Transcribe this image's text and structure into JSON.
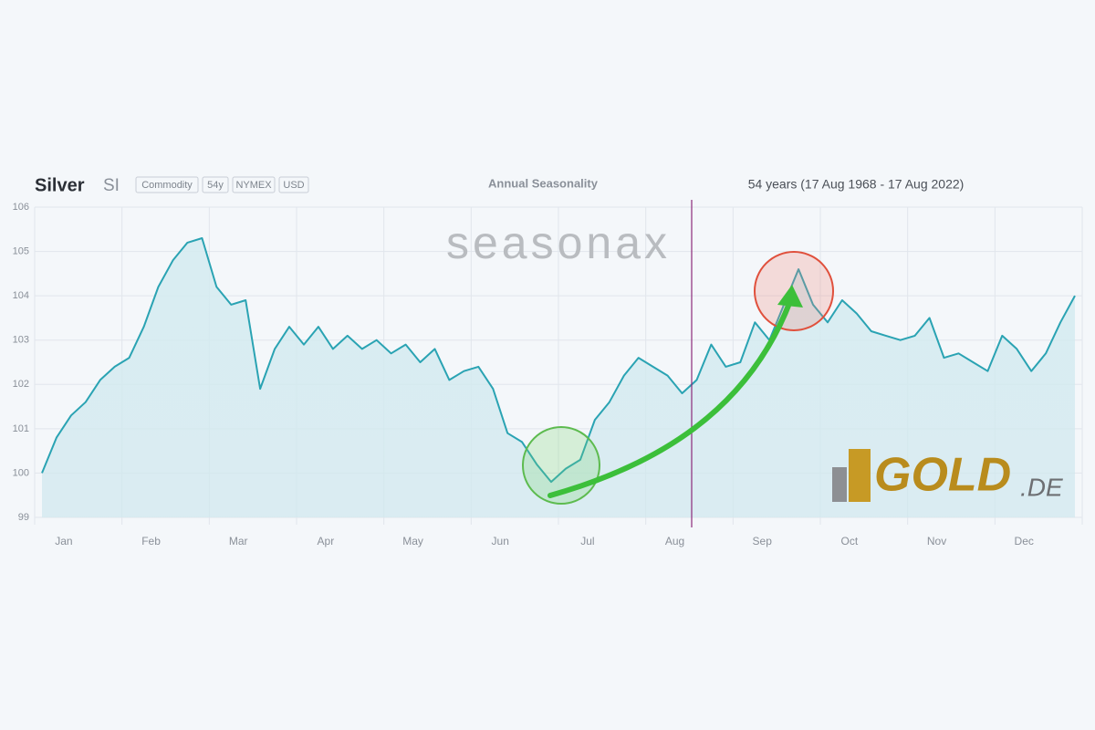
{
  "chart_data": {
    "type": "line",
    "title": "Silver",
    "symbol": "SI",
    "tags": [
      "Commodity",
      "54y",
      "NYMEX",
      "USD"
    ],
    "subtitle": "Annual Seasonality",
    "period": "54 years (17 Aug 1968 - 17 Aug 2022)",
    "watermark": "seasonax",
    "logo": [
      "GOLD",
      ".DE"
    ],
    "categories": [
      null,
      null,
      "Jan",
      null,
      null,
      null,
      null,
      null,
      "Feb",
      null,
      null,
      null,
      null,
      null,
      "Mar",
      null,
      null,
      null,
      null,
      null,
      "Apr",
      null,
      null,
      null,
      null,
      null,
      "May",
      null,
      null,
      null,
      null,
      null,
      "Jun",
      null,
      null,
      null,
      null,
      null,
      "Jul",
      null,
      null,
      null,
      null,
      null,
      "Aug",
      null,
      null,
      null,
      null,
      null,
      "Sep",
      null,
      null,
      null,
      null,
      null,
      "Oct",
      null,
      null,
      null,
      null,
      null,
      "Nov",
      null,
      null,
      null,
      null,
      null,
      "Dec",
      null,
      null,
      null
    ],
    "series": [
      {
        "name": "Silver",
        "color": "#2aa3b3",
        "values": [
          100.0,
          100.8,
          101.3,
          101.6,
          102.1,
          102.4,
          102.6,
          103.3,
          104.2,
          104.8,
          105.2,
          105.3,
          104.2,
          103.8,
          103.9,
          101.9,
          102.8,
          103.3,
          102.9,
          103.3,
          102.8,
          103.1,
          102.8,
          103.0,
          102.7,
          102.9,
          102.5,
          102.8,
          102.1,
          102.3,
          102.4,
          101.9,
          100.9,
          100.7,
          100.2,
          99.8,
          100.1,
          100.3,
          101.2,
          101.6,
          102.2,
          102.6,
          102.4,
          102.2,
          101.8,
          102.1,
          102.9,
          102.4,
          102.5,
          103.4,
          103.0,
          103.8,
          104.6,
          103.8,
          103.4,
          103.9,
          103.6,
          103.2,
          103.1,
          103.0,
          103.1,
          103.5,
          102.6,
          102.7,
          102.5,
          102.3,
          103.1,
          102.8,
          102.3,
          102.7,
          103.4,
          104.0
        ]
      }
    ],
    "ylim": [
      99,
      106
    ],
    "yticks": [
      99,
      100,
      101,
      102,
      103,
      104,
      105,
      106
    ],
    "grid": true
  }
}
